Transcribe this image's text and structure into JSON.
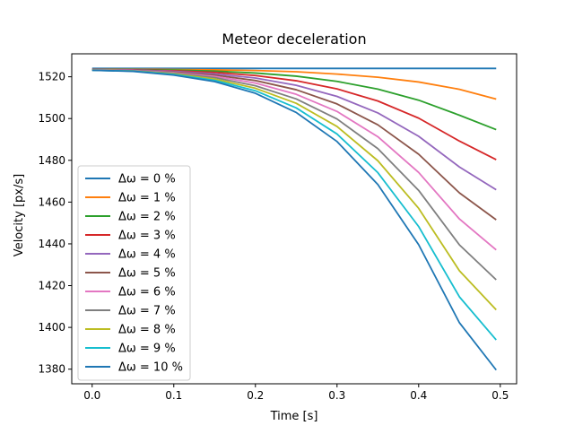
{
  "chart_data": {
    "type": "line",
    "title": "Meteor deceleration",
    "xlabel": "Time [s]",
    "ylabel": "Velocity [px/s]",
    "xlim": [
      -0.025,
      0.52
    ],
    "ylim": [
      1373,
      1531
    ],
    "xticks": [
      0.0,
      0.1,
      0.2,
      0.3,
      0.4,
      0.5
    ],
    "xtick_labels": [
      "0.0",
      "0.1",
      "0.2",
      "0.3",
      "0.4",
      "0.5"
    ],
    "yticks": [
      1380,
      1400,
      1420,
      1440,
      1460,
      1480,
      1500,
      1520
    ],
    "ytick_labels": [
      "1380",
      "1400",
      "1420",
      "1440",
      "1460",
      "1480",
      "1500",
      "1520"
    ],
    "grid": false,
    "legend_position": "lower-left",
    "x": [
      0.0,
      0.05,
      0.1,
      0.15,
      0.2,
      0.25,
      0.3,
      0.35,
      0.4,
      0.45,
      0.495
    ],
    "series": [
      {
        "name": "Δω = 0 %",
        "color": "#1f77b4",
        "values": [
          1524,
          1524,
          1524,
          1524,
          1524,
          1524,
          1524,
          1524,
          1524,
          1524,
          1524
        ]
      },
      {
        "name": "Δω = 1 %",
        "color": "#ff7f0e",
        "values": [
          1523.6,
          1523.6,
          1523.5,
          1523.3,
          1523.0,
          1522.4,
          1521.3,
          1519.8,
          1517.5,
          1514.0,
          1509.3
        ]
      },
      {
        "name": "Δω = 2 %",
        "color": "#2ca02c",
        "values": [
          1523.5,
          1523.4,
          1523.2,
          1522.7,
          1521.8,
          1520.3,
          1517.8,
          1514.1,
          1508.8,
          1501.6,
          1494.7
        ]
      },
      {
        "name": "Δω = 3 %",
        "color": "#d62728",
        "values": [
          1523.4,
          1523.3,
          1522.9,
          1522.1,
          1520.6,
          1518.1,
          1514.2,
          1508.4,
          1500.2,
          1489.2,
          1480.3
        ]
      },
      {
        "name": "Δω = 4 %",
        "color": "#9467bd",
        "values": [
          1523.4,
          1523.2,
          1522.6,
          1521.4,
          1519.4,
          1515.9,
          1510.6,
          1502.7,
          1491.5,
          1476.8,
          1465.9
        ]
      },
      {
        "name": "Δω = 5 %",
        "color": "#8c564b",
        "values": [
          1523.3,
          1523.1,
          1522.3,
          1520.8,
          1518.2,
          1513.8,
          1507.0,
          1497.0,
          1482.9,
          1464.4,
          1451.5
        ]
      },
      {
        "name": "Δω = 6 %",
        "color": "#e377c2",
        "values": [
          1523.3,
          1523.0,
          1522.0,
          1520.2,
          1517.0,
          1511.6,
          1503.4,
          1491.3,
          1474.2,
          1451.9,
          1437.1
        ]
      },
      {
        "name": "Δω = 7 %",
        "color": "#7f7f7f",
        "values": [
          1523.2,
          1522.9,
          1521.7,
          1519.6,
          1515.7,
          1509.4,
          1499.8,
          1485.6,
          1465.6,
          1439.5,
          1422.8
        ]
      },
      {
        "name": "Δω = 8 %",
        "color": "#bcbd22",
        "values": [
          1523.2,
          1522.8,
          1521.4,
          1518.9,
          1514.5,
          1507.3,
          1496.2,
          1479.8,
          1457.0,
          1427.1,
          1408.4
        ]
      },
      {
        "name": "Δω = 9 %",
        "color": "#17becf",
        "values": [
          1523.1,
          1522.7,
          1521.1,
          1518.3,
          1513.3,
          1505.1,
          1492.6,
          1474.1,
          1448.3,
          1414.6,
          1394.0
        ]
      },
      {
        "name": "Δω = 10 %",
        "color": "#1f77b4",
        "values": [
          1523.1,
          1522.6,
          1520.8,
          1517.7,
          1512.1,
          1502.9,
          1489.0,
          1468.4,
          1439.6,
          1402.2,
          1379.6
        ]
      }
    ]
  }
}
